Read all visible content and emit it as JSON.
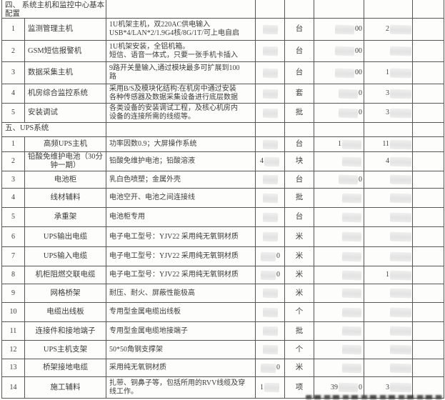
{
  "document": {
    "sections": [
      {
        "title": "四、 系统主机和监控中心基本\n配置",
        "rows": [
          {
            "no": "1",
            "name": "监测管理主机",
            "desc": "1U机架主机，双220AC供电输入\nUSB*4/LAN*2/1.9G4核/8G/1T/可上电自启",
            "unit": "台",
            "price_post": "00",
            "total_pre": "2"
          },
          {
            "no": "2",
            "name": "GSM短信报警机",
            "desc": "1U机架安装，全铝机箱。\n短信、语音一体式，只要一张手机卡插入",
            "unit": "台",
            "price_post": "00",
            "total_pre": ""
          },
          {
            "no": "3",
            "name": "数据采集主机",
            "desc": "9路开关量输入,通过模块最多可扩展到100\n路",
            "unit": "台",
            "price_post": "00",
            "total_pre": "1"
          },
          {
            "no": "4",
            "name": "机房综合监控系统",
            "desc": "采用B/S及模块化结构:在机房中通过安装\n各种传感器及数据采集设备进行底层数据",
            "unit": "套",
            "price_post": "0",
            "total_pre": "3"
          },
          {
            "no": "5",
            "name": "安装调试",
            "desc": "各类设备的安装调试工程，及核心机房内\n设备的连接所需的线缆等。",
            "unit": "批",
            "price_post": "0",
            "total_pre": "3"
          }
        ]
      },
      {
        "title": "五、UPS系统",
        "rows": [
          {
            "no": "1",
            "name": "高频UPS主机",
            "desc": "功率因数0.9；大屏操作系统",
            "unit": "台",
            "price_pre": "1",
            "total_pre": "11"
          },
          {
            "no": "2",
            "name": "铅酸免维护电池（30分\n钟一期）",
            "desc": "铅酸免维护电池；铅酸溶液",
            "qty_pre": "4",
            "unit": "块",
            "total_pre": "4"
          },
          {
            "no": "3",
            "name": "电池柜",
            "desc": "乳白色喷塑；金属外壳",
            "unit": "台",
            "price_post": "0"
          },
          {
            "no": "4",
            "name": "线材辅料",
            "desc": "电池空开、电池之间连接线",
            "unit": "批"
          },
          {
            "no": "5",
            "name": "承重架",
            "desc": "电池柜专用",
            "unit": "台"
          },
          {
            "no": "6",
            "name": "UPS输出电缆",
            "desc": "电子电工型号：YJV22 采用纯无氧铜材质",
            "unit": "米"
          },
          {
            "no": "7",
            "name": "UPS输入电缆",
            "desc": "电子电工型号：YJV22 采用纯无氧铜材质",
            "qty_post": "0",
            "unit": "米"
          },
          {
            "no": "8",
            "name": "机柜阻燃交联电缆",
            "desc": "电子电工型号：YJV22 采用纯无氧铜材质",
            "qty_post": "0",
            "unit": "米",
            "total_pre": "1"
          },
          {
            "no": "9",
            "name": "网格桥架",
            "desc": "耐压、耐火、屏蔽性能极高",
            "unit": "米"
          },
          {
            "no": "10",
            "name": "电缆出线板",
            "desc": "专用型金属电缆出线板",
            "unit": "个"
          },
          {
            "no": "11",
            "name": "连接件和接地端子",
            "desc": "专用型金属电缆地接端子",
            "unit": "批"
          },
          {
            "no": "12",
            "name": "UPS主机支架",
            "desc": "50*50角钢支撑架",
            "unit": "个"
          },
          {
            "no": "13",
            "name": "桥架接地电缆",
            "desc": "采用纯无氧铜材质",
            "qty_post": "0",
            "unit": "米"
          },
          {
            "no": "14",
            "name": "施工辅料",
            "desc": "扎带、铜鼻子等，包括所用的RVV线缆及穿\n线工作。",
            "qty_pre": "1",
            "unit": "项",
            "price_pre": "39",
            "price_post": "0",
            "total_pre": "3"
          }
        ]
      }
    ]
  }
}
